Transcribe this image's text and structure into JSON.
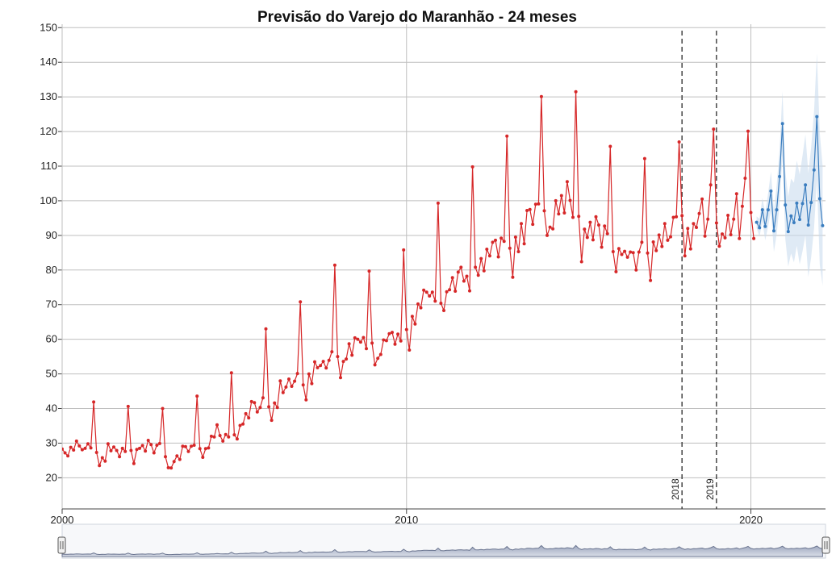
{
  "chart_data": {
    "type": "line",
    "title": "Previsão do Varejo do Maranhão - 24 meses",
    "xlabel": "",
    "ylabel": "",
    "ylim": [
      11,
      151
    ],
    "xlim": [
      "2000-01",
      "2022-03"
    ],
    "yticks": [
      20,
      30,
      40,
      50,
      60,
      70,
      80,
      90,
      100,
      110,
      120,
      130,
      140,
      150
    ],
    "xticks": [
      {
        "label": "2000",
        "date": "2000-01"
      },
      {
        "label": "2010",
        "date": "2010-01"
      },
      {
        "label": "2020",
        "date": "2020-01"
      }
    ],
    "grid": true,
    "events": [
      {
        "label": "2018",
        "date": "2018-01"
      },
      {
        "label": "2019",
        "date": "2019-01"
      }
    ],
    "series": [
      {
        "name": "",
        "color": "#d62728",
        "start": "2000-01",
        "frequency": "monthly",
        "values": [
          28.3,
          27.2,
          26.3,
          28.8,
          28.0,
          30.6,
          29.2,
          28.1,
          28.5,
          29.8,
          28.6,
          41.9,
          27.3,
          23.5,
          25.8,
          24.8,
          29.8,
          27.8,
          28.9,
          27.9,
          26.1,
          28.5,
          27.6,
          40.6,
          27.9,
          24.1,
          28.2,
          28.5,
          29.3,
          27.7,
          30.8,
          29.6,
          27.2,
          29.4,
          29.9,
          40.0,
          26.1,
          22.9,
          22.8,
          24.7,
          26.3,
          25.3,
          29.1,
          29.0,
          27.6,
          29.1,
          29.4,
          43.6,
          28.4,
          25.9,
          28.4,
          28.6,
          32.0,
          31.8,
          35.3,
          32.2,
          30.6,
          32.5,
          31.8,
          50.3,
          32.4,
          31.2,
          35.1,
          35.5,
          38.5,
          37.3,
          42.0,
          41.7,
          39.0,
          40.3,
          43.1,
          63.0,
          40.5,
          36.6,
          41.6,
          40.3,
          48.0,
          44.6,
          46.2,
          48.5,
          46.4,
          47.9,
          50.1,
          70.8,
          46.8,
          42.5,
          50.0,
          47.2,
          53.5,
          51.8,
          52.4,
          53.6,
          51.7,
          53.9,
          56.4,
          81.4,
          55.0,
          48.9,
          53.6,
          54.3,
          58.7,
          55.4,
          60.4,
          60.0,
          59.2,
          60.5,
          57.3,
          79.7,
          58.9,
          52.6,
          54.5,
          55.6,
          59.8,
          59.6,
          61.6,
          62.0,
          58.6,
          61.5,
          59.5,
          85.8,
          62.8,
          56.9,
          66.6,
          64.4,
          70.2,
          69.1,
          74.2,
          73.6,
          72.5,
          73.6,
          71.0,
          99.3,
          70.4,
          68.3,
          73.7,
          74.3,
          77.8,
          73.9,
          79.4,
          80.8,
          76.8,
          78.2,
          74.0,
          109.8,
          80.8,
          78.5,
          83.3,
          79.8,
          86.0,
          84.1,
          88.0,
          88.6,
          83.8,
          89.2,
          88.3,
          118.7,
          86.3,
          77.9,
          89.5,
          85.3,
          93.4,
          87.6,
          97.2,
          97.5,
          93.2,
          99.0,
          99.1,
          130.1,
          97.1,
          90.0,
          92.4,
          91.9,
          100.0,
          96.2,
          101.5,
          96.5,
          105.5,
          100.1,
          95.2,
          131.5,
          95.5,
          82.4,
          91.8,
          89.4,
          93.8,
          88.7,
          95.4,
          93.0,
          86.6,
          92.7,
          90.5,
          115.7,
          85.3,
          79.5,
          86.2,
          84.5,
          85.4,
          83.7,
          85.2,
          85.0,
          80.0,
          85.2,
          88.0,
          112.2,
          84.9,
          77.0,
          88.1,
          85.6,
          90.1,
          86.8,
          93.4,
          88.6,
          89.6,
          95.2,
          95.4,
          117.0,
          95.7,
          84.1,
          92.0,
          86.1,
          93.4,
          92.3,
          96.3,
          100.5,
          89.8,
          94.7,
          104.6,
          120.7,
          93.6,
          86.9,
          90.4,
          89.3,
          95.8,
          90.2,
          94.7,
          102.0,
          89.1,
          98.4,
          106.5,
          120.1,
          96.6,
          89.1
        ]
      },
      {
        "name": "",
        "color": "#3a7dbf",
        "start": "2020-03",
        "frequency": "monthly",
        "values": [
          93.8,
          92.2,
          97.4,
          92.6,
          97.4,
          102.8,
          91.3,
          97.4,
          107.0,
          122.3,
          98.8,
          91.1,
          95.6,
          93.7,
          99.3,
          94.6,
          99.2,
          104.6,
          93.0,
          99.5,
          108.9,
          124.3,
          100.6,
          92.8
        ],
        "lower": [
          92.1,
          89.6,
          94.0,
          88.6,
          92.6,
          97.2,
          85.2,
          90.3,
          99.0,
          113.0,
          89.0,
          81.0,
          84.8,
          82.2,
          87.0,
          81.6,
          85.4,
          90.0,
          78.0,
          83.6,
          92.0,
          106.0,
          81.5,
          75.5
        ],
        "upper": [
          95.5,
          94.8,
          100.8,
          96.6,
          102.2,
          108.4,
          97.4,
          104.5,
          115.0,
          131.6,
          108.6,
          101.2,
          106.4,
          105.2,
          111.6,
          107.6,
          113.0,
          119.2,
          108.0,
          115.4,
          125.8,
          142.6,
          119.7,
          110.1
        ]
      }
    ],
    "navigator": {
      "range": [
        "2000-01",
        "2022-03"
      ]
    }
  }
}
